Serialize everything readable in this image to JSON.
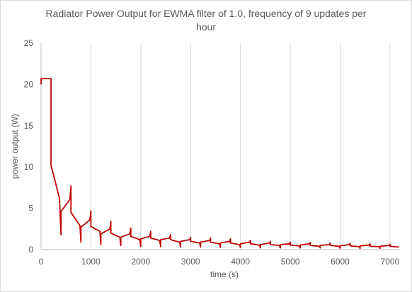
{
  "chart_data": {
    "type": "line",
    "title_lines": [
      "Radiator Power Output for EWMA filter of 1.0, frequency of 9 updates per",
      "hour"
    ],
    "xlabel": "time (s)",
    "ylabel": "power output (W)",
    "xlim": [
      0,
      7200
    ],
    "ylim": [
      0,
      25
    ],
    "x_ticks": [
      0,
      1000,
      2000,
      3000,
      4000,
      5000,
      6000,
      7000
    ],
    "y_ticks": [
      0,
      5,
      10,
      15,
      20,
      25
    ],
    "grid": {
      "vertical": true,
      "horizontal": false
    },
    "legend": "none",
    "series": [
      {
        "color": "#c00000",
        "x": [
          0,
          0,
          200,
          200,
          370,
          400,
          400,
          580,
          600,
          600,
          780,
          800,
          800,
          980,
          1000,
          1000,
          1180,
          1200,
          1200,
          1380,
          1400,
          1400,
          1580,
          1600,
          1600,
          1780,
          1800,
          1800,
          1980,
          2000,
          2000,
          2180,
          2200,
          2200,
          2380,
          2400,
          2400,
          2580,
          2600,
          2600,
          2780,
          2800,
          2800,
          2980,
          3000,
          3000,
          3180,
          3200,
          3200,
          3380,
          3400,
          3400,
          3580,
          3600,
          3600,
          3780,
          3800,
          3800,
          3980,
          4000,
          4000,
          4180,
          4200,
          4200,
          4380,
          4400,
          4400,
          4580,
          4600,
          4600,
          4780,
          4800,
          4800,
          4980,
          5000,
          5000,
          5180,
          5200,
          5200,
          5380,
          5400,
          5400,
          5580,
          5600,
          5600,
          5780,
          5800,
          5800,
          5980,
          6000,
          6000,
          6180,
          6200,
          6200,
          6380,
          6400,
          6400,
          6580,
          6600,
          6600,
          6780,
          6800,
          6800,
          6980,
          7000,
          7000,
          7180
        ],
        "y": [
          20,
          20.7,
          20.7,
          10.2,
          6.2,
          1.8,
          4.6,
          6.1,
          7.7,
          4.5,
          2.9,
          0.9,
          2.7,
          3.6,
          4.7,
          2.8,
          2.2,
          0.6,
          1.9,
          2.5,
          3.4,
          2.0,
          1.5,
          0.5,
          1.5,
          1.9,
          2.6,
          1.6,
          1.2,
          0.4,
          1.3,
          1.6,
          2.2,
          1.4,
          1.1,
          0.35,
          1.2,
          1.4,
          1.8,
          1.2,
          0.9,
          0.3,
          1.0,
          1.2,
          1.5,
          1.0,
          0.8,
          0.3,
          0.9,
          1.1,
          1.4,
          0.9,
          0.7,
          0.25,
          0.8,
          1.0,
          1.3,
          0.8,
          0.6,
          0.25,
          0.7,
          0.9,
          1.1,
          0.7,
          0.55,
          0.2,
          0.6,
          0.8,
          1.0,
          0.6,
          0.5,
          0.2,
          0.6,
          0.7,
          0.9,
          0.55,
          0.45,
          0.2,
          0.55,
          0.7,
          0.85,
          0.5,
          0.4,
          0.2,
          0.5,
          0.6,
          0.8,
          0.5,
          0.4,
          0.15,
          0.45,
          0.6,
          0.75,
          0.45,
          0.35,
          0.15,
          0.45,
          0.55,
          0.7,
          0.4,
          0.35,
          0.15,
          0.4,
          0.5,
          0.65,
          0.4,
          0.3
        ]
      }
    ]
  }
}
